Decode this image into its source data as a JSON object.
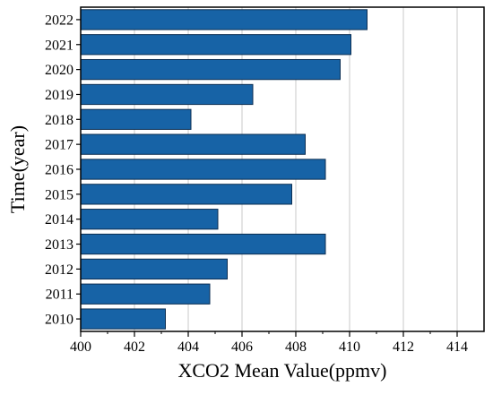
{
  "chart_data": {
    "type": "bar",
    "orientation": "horizontal",
    "categories": [
      "2022",
      "2021",
      "2020",
      "2019",
      "2018",
      "2017",
      "2016",
      "2015",
      "2014",
      "2013",
      "2012",
      "2011",
      "2010"
    ],
    "values": [
      410.65,
      410.05,
      409.65,
      406.4,
      404.1,
      408.35,
      409.1,
      407.85,
      405.1,
      409.1,
      405.45,
      404.8,
      403.15
    ],
    "xlabel": "XCO2 Mean Value(ppmv)",
    "ylabel": "Time(year)",
    "xlim": [
      400,
      415
    ],
    "xticks": [
      400,
      402,
      404,
      406,
      408,
      410,
      412,
      414
    ],
    "grid": "vertical",
    "bar_color": "#1763a6",
    "bar_edge_color": "#0b2e52"
  }
}
